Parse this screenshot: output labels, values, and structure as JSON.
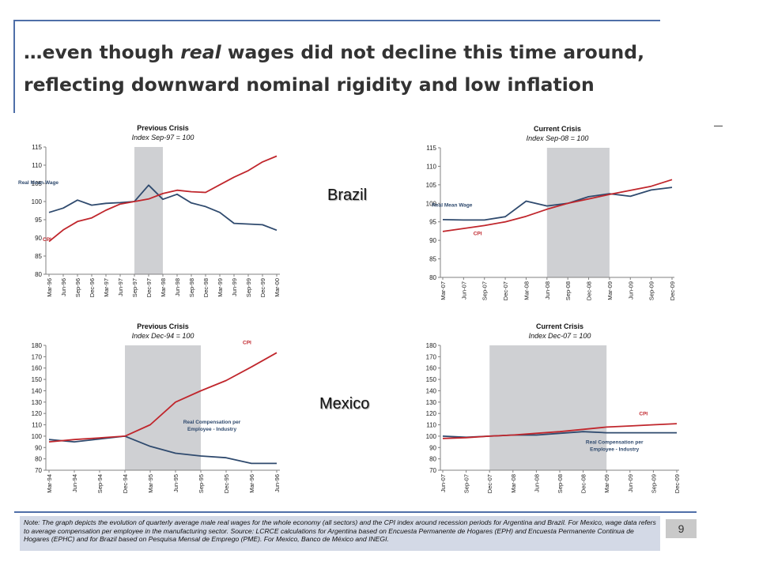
{
  "slide": {
    "title_line1_pre": "…even though ",
    "title_line1_em": "real",
    "title_line1_post": " wages did not decline this time around,",
    "title_line2": "reflecting downward nominal rigidity and low inflation",
    "country_labels": [
      "Brazil",
      "Mexico"
    ],
    "note": "Note: The graph depicts the evolution of quarterly average male real wages for the whole economy (all sectors) and the CPI index around recession periods for Argentina and Brazil. For Mexico, wage data refers to average compensation per employee in the manufacturing sector. Source: LCRCE calculations for Argentina based on Encuesta Permanente de Hogares (EPH) and Encuesta Permanente Continua de Hogares (EPHC) and for Brazil based on Pesquisa Mensal de Emprego (PME). For Mexico, Banco de México and INEGI.",
    "page_number": "9"
  },
  "chart_data": [
    {
      "type": "line",
      "title": "Previous Crisis",
      "subtitle": "Index Sep-97 = 100",
      "ylim": [
        80,
        115
      ],
      "yticks": [
        80,
        85,
        90,
        95,
        100,
        105,
        110,
        115
      ],
      "categories": [
        "Mar-96",
        "Jun-96",
        "Sep-96",
        "Dec-96",
        "Mar-97",
        "Jun-97",
        "Sep-97",
        "Dec-97",
        "Mar-98",
        "Jun-98",
        "Sep-98",
        "Dec-98",
        "Mar-99",
        "Jun-99",
        "Sep-99",
        "Dec-99",
        "Mar-00"
      ],
      "shade": [
        6,
        8
      ],
      "series": [
        {
          "name": "Real Mean Wage",
          "color": "#2f4a6e",
          "values": [
            97,
            98.2,
            100.4,
            99,
            99.5,
            99.7,
            100,
            104.5,
            100.6,
            102,
            99.6,
            98.6,
            97,
            94,
            93.8,
            93.6,
            92.1
          ]
        },
        {
          "name": "CPI",
          "color": "#c0262c",
          "values": [
            89,
            92.2,
            94.5,
            95.5,
            97.6,
            99.3,
            100,
            100.7,
            102.2,
            103.1,
            102.7,
            102.5,
            104.6,
            106.7,
            108.5,
            110.9,
            112.5
          ]
        }
      ]
    },
    {
      "type": "line",
      "title": "Current Crisis",
      "subtitle": "Index  Sep-08 = 100",
      "ylim": [
        80,
        115
      ],
      "yticks": [
        80,
        85,
        90,
        95,
        100,
        105,
        110,
        115
      ],
      "categories": [
        "Mar-07",
        "Jun-07",
        "Sep-07",
        "Dec-07",
        "Mar-08",
        "Jun-08",
        "Sep-08",
        "Dec-08",
        "Mar-09",
        "Jun-09",
        "Sep-09",
        "Dec-09"
      ],
      "shade": [
        5,
        8
      ],
      "series": [
        {
          "name": "Real Mean Wage",
          "color": "#2f4a6e",
          "values": [
            95.6,
            95.5,
            95.5,
            96.4,
            100.6,
            99.3,
            100,
            101.8,
            102.6,
            101.9,
            103.6,
            104.3
          ]
        },
        {
          "name": "CPI",
          "color": "#c0262c",
          "values": [
            92.4,
            93.2,
            94,
            95,
            96.5,
            98.4,
            100,
            101.2,
            102.4,
            103.5,
            104.6,
            106.4
          ]
        }
      ]
    },
    {
      "type": "line",
      "title": "Previous Crisis",
      "subtitle": "Index Dec-94 = 100",
      "ylim": [
        70,
        180
      ],
      "yticks": [
        70,
        80,
        90,
        100,
        110,
        120,
        130,
        140,
        150,
        160,
        170,
        180
      ],
      "categories": [
        "Mar-94",
        "Jun-94",
        "Sep-94",
        "Dec-94",
        "Mar-95",
        "Jun-95",
        "Sep-95",
        "Dec-95",
        "Mar-96",
        "Jun-96"
      ],
      "shade": [
        3,
        6
      ],
      "series": [
        {
          "name": "Real Compensation per Employee - Industry",
          "color": "#2f4a6e",
          "values": [
            97,
            95,
            97.5,
            100,
            91,
            85,
            82.5,
            81,
            76,
            76
          ]
        },
        {
          "name": "CPI",
          "color": "#c0262c",
          "values": [
            95,
            97,
            98.5,
            100,
            110,
            130,
            140,
            149,
            161,
            173.5
          ]
        }
      ]
    },
    {
      "type": "line",
      "title": "Current Crisis",
      "subtitle": "Index Dec-07 = 100",
      "ylim": [
        70,
        180
      ],
      "yticks": [
        70,
        80,
        90,
        100,
        110,
        120,
        130,
        140,
        150,
        160,
        170,
        180
      ],
      "categories": [
        "Jun-07",
        "Sep-07",
        "Dec-07",
        "Mar-08",
        "Jun-08",
        "Sep-08",
        "Dec-08",
        "Mar-09",
        "Jun-09",
        "Sep-09",
        "Dec-09"
      ],
      "shade": [
        2,
        7
      ],
      "series": [
        {
          "name": "Real Compensation per Employee - Industry",
          "color": "#2f4a6e",
          "values": [
            100,
            99,
            100,
            101,
            101,
            102.5,
            104,
            103,
            103,
            103,
            103
          ]
        },
        {
          "name": "CPI",
          "color": "#c0262c",
          "values": [
            98,
            98.7,
            100,
            101,
            102.5,
            104,
            106,
            108,
            109,
            110,
            111
          ]
        }
      ]
    }
  ]
}
